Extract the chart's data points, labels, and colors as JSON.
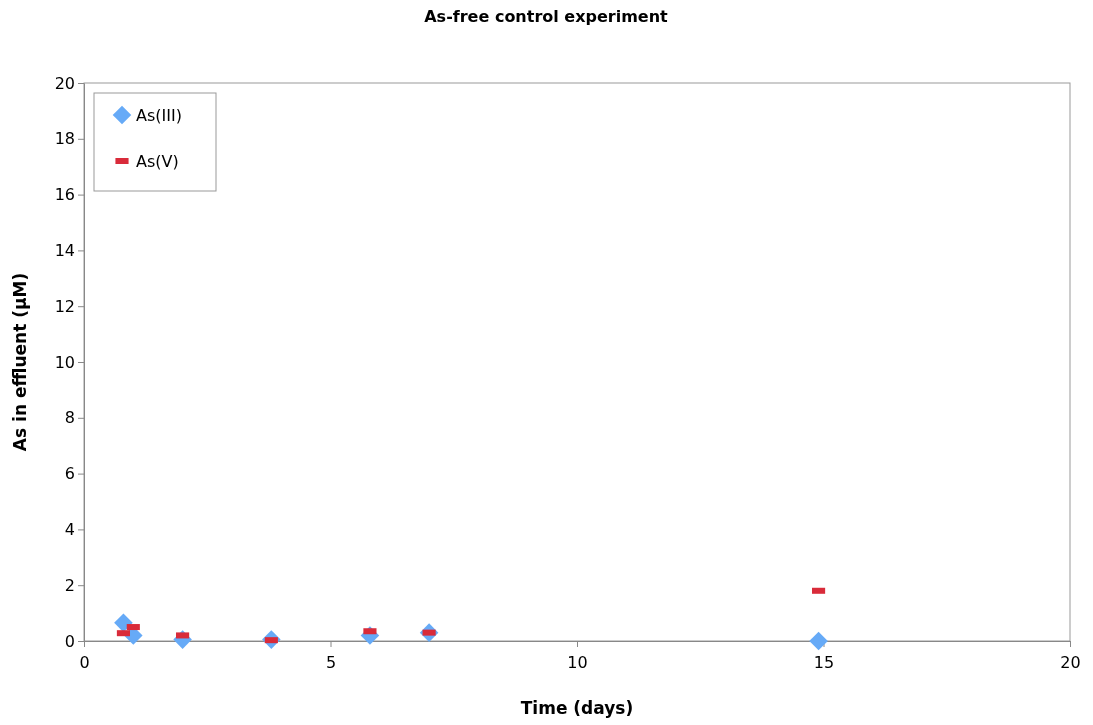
{
  "chart_data": {
    "type": "scatter",
    "title": "As-free control experiment",
    "xlabel": "Time (days)",
    "ylabel": "As in effluent (µM)",
    "xlim": [
      0,
      20
    ],
    "xticks": [
      0,
      5,
      10,
      15,
      20
    ],
    "ylim": [
      0,
      20
    ],
    "yticks": [
      0,
      2,
      4,
      6,
      8,
      10,
      12,
      14,
      16,
      18,
      20
    ],
    "legend": "top left",
    "series": [
      {
        "name": "As(III)",
        "color": "#66aaf7",
        "marker": "diamond",
        "x": [
          0.8,
          1.0,
          2.0,
          3.8,
          5.8,
          7.0,
          14.9
        ],
        "values": [
          0.65,
          0.2,
          0.05,
          0.05,
          0.2,
          0.3,
          0
        ]
      },
      {
        "name": "As(V)",
        "color": "#d92b3a",
        "x": [
          0.8,
          1.0,
          2.0,
          3.8,
          5.8,
          7.0,
          14.9
        ],
        "values": [
          0.28,
          0.5,
          0.2,
          0.03,
          0.35,
          0.3,
          1.8
        ]
      }
    ]
  }
}
